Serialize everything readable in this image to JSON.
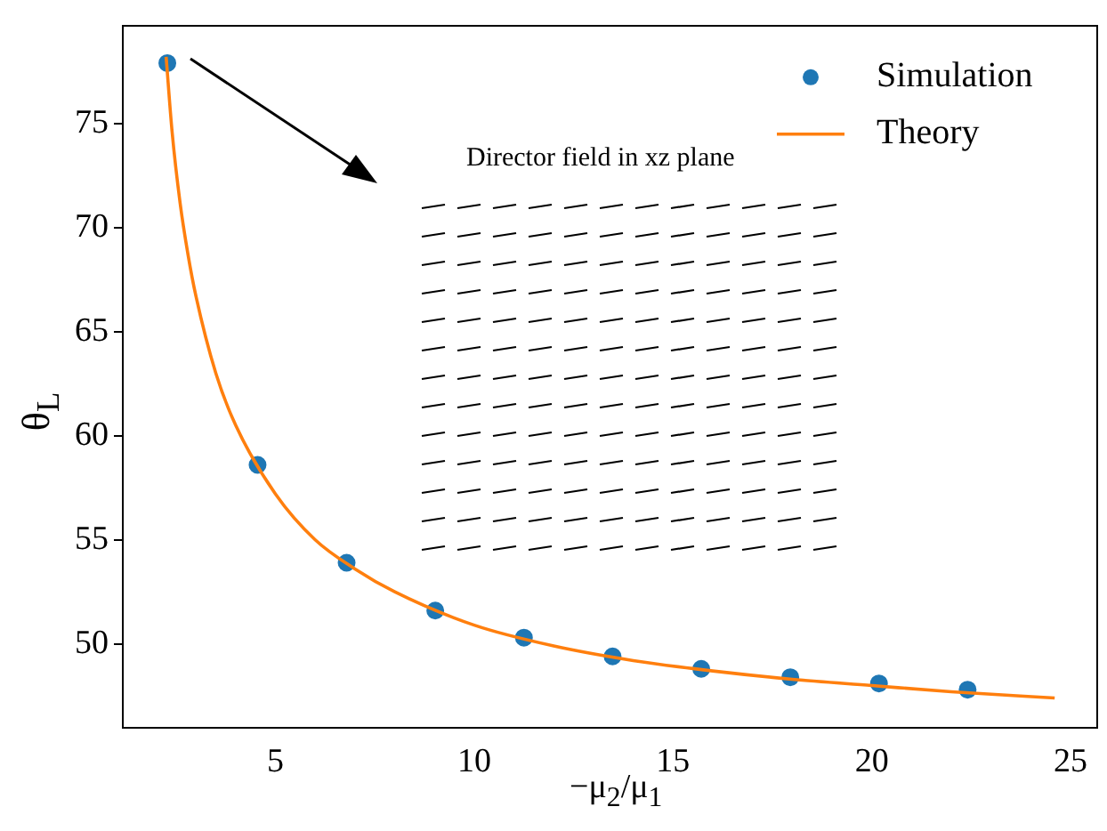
{
  "chart_data": {
    "type": "scatter",
    "xlabel": "−μ$_{2}$/μ$_{1}$",
    "ylabel": "θ$_{L}$",
    "xlim": [
      1.16,
      25.67
    ],
    "xticks": [
      5,
      10,
      15,
      20,
      25
    ],
    "ylim": [
      45.97,
      79.7
    ],
    "yticks": [
      50,
      55,
      60,
      65,
      70,
      75
    ],
    "legend": "top right",
    "grid": false,
    "annotations": [
      "Director field in xz plane"
    ],
    "series": [
      {
        "name": "Simulation",
        "marker": "circle",
        "color": "#1f77b4",
        "x": [
          2.28,
          4.55,
          6.79,
          9.02,
          11.25,
          13.48,
          15.71,
          17.95,
          20.18,
          22.41
        ],
        "values": [
          77.9,
          58.6,
          53.9,
          51.6,
          50.3,
          49.4,
          48.8,
          48.4,
          48.1,
          47.8
        ]
      },
      {
        "name": "Theory",
        "type": "line",
        "marker": "none",
        "color": "#ff7f0e",
        "x": [
          2.25,
          2.4,
          2.6,
          2.8,
          3.0,
          3.5,
          4,
          5,
          6,
          7,
          8,
          10,
          12,
          14,
          16,
          18,
          20,
          22,
          24.6
        ],
        "values": [
          78.2,
          74.6,
          71.2,
          68.7,
          66.7,
          63.0,
          60.5,
          57.2,
          55.0,
          53.6,
          52.5,
          50.9,
          49.9,
          49.2,
          48.7,
          48.3,
          48.0,
          47.7,
          47.4
        ]
      }
    ]
  }
}
